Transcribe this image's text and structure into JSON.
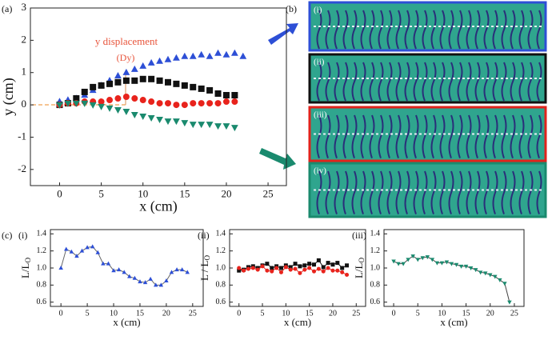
{
  "panel_labels": {
    "a": "(a)",
    "b": "(b)",
    "c": "(c)"
  },
  "images": [
    {
      "label": "(i)",
      "color": "#2d4fd6"
    },
    {
      "label": "(ii)",
      "color": "#111111"
    },
    {
      "label": "(iii)",
      "color": "#e0231c"
    },
    {
      "label": "(iv)",
      "color": "#1a8a6e"
    }
  ],
  "chart_data": [
    {
      "type": "scatter",
      "xlabel": "x (cm)",
      "ylabel": "y (cm)",
      "annotations": [
        "y displacement",
        "(Dy)"
      ],
      "xlim": [
        -3.5,
        27.2
      ],
      "ylim": [
        -2.5,
        3
      ],
      "xticks": [
        0,
        5,
        10,
        15,
        20,
        25
      ],
      "yticks": [
        -2,
        -1,
        0,
        1,
        2,
        3
      ],
      "series": [
        {
          "marker": "tri-up",
          "color": "#2d4fd6",
          "x": [
            0,
            1,
            2,
            3,
            4,
            5,
            6,
            7,
            8,
            9,
            10,
            11,
            12,
            13,
            14,
            15,
            16,
            17,
            18,
            19,
            20,
            21,
            22
          ],
          "values": [
            0.1,
            0.15,
            0.2,
            0.3,
            0.45,
            0.6,
            0.75,
            0.9,
            1.0,
            1.1,
            1.2,
            1.3,
            1.35,
            1.4,
            1.45,
            1.5,
            1.5,
            1.55,
            1.5,
            1.6,
            1.55,
            1.6,
            1.5
          ]
        },
        {
          "marker": "square",
          "color": "#111111",
          "x": [
            0,
            1,
            2,
            3,
            4,
            5,
            6,
            7,
            8,
            9,
            10,
            11,
            12,
            13,
            14,
            15,
            16,
            17,
            18,
            19,
            20,
            21
          ],
          "values": [
            0,
            0.05,
            0.2,
            0.4,
            0.55,
            0.6,
            0.65,
            0.7,
            0.75,
            0.75,
            0.8,
            0.8,
            0.75,
            0.7,
            0.65,
            0.6,
            0.55,
            0.5,
            0.45,
            0.35,
            0.3,
            0.3
          ]
        },
        {
          "marker": "circle",
          "color": "#e8231c",
          "x": [
            0,
            1,
            2,
            3,
            4,
            5,
            6,
            7,
            8,
            9,
            10,
            11,
            12,
            13,
            14,
            15,
            16,
            17,
            18,
            19,
            20,
            21
          ],
          "values": [
            0,
            0.05,
            0.05,
            0.1,
            0.1,
            0.1,
            0.15,
            0.2,
            0.25,
            0.2,
            0.15,
            0.1,
            0.05,
            0.05,
            0,
            0,
            0.05,
            0.05,
            0.05,
            0.05,
            0.1,
            0.1
          ]
        },
        {
          "marker": "tri-down",
          "color": "#1a8a6e",
          "x": [
            0,
            1,
            2,
            3,
            4,
            5,
            6,
            7,
            8,
            9,
            10,
            11,
            12,
            13,
            14,
            15,
            16,
            17,
            18,
            19,
            20,
            21
          ],
          "values": [
            0,
            0.05,
            0.05,
            0.05,
            0,
            -0.05,
            -0.1,
            -0.15,
            -0.2,
            -0.3,
            -0.35,
            -0.4,
            -0.45,
            -0.5,
            -0.5,
            -0.55,
            -0.6,
            -0.6,
            -0.6,
            -0.65,
            -0.65,
            -0.7
          ]
        }
      ]
    },
    {
      "type": "line",
      "label": "(i)",
      "xlabel": "x (cm)",
      "ylabel": "L/L",
      "ylabel_sub": "O",
      "xlim": [
        -2,
        27
      ],
      "ylim": [
        0.55,
        1.45
      ],
      "xticks": [
        0,
        5,
        10,
        15,
        20,
        25
      ],
      "yticks": [
        0.6,
        0.8,
        {
          "value": 1,
          "label": "1.0"
        },
        1.2,
        1.4
      ],
      "series": [
        {
          "marker": "tri-up",
          "color": "#2d4fd6",
          "x": [
            0,
            1,
            2,
            3,
            4,
            5,
            6,
            7,
            8,
            9,
            10,
            11,
            12,
            13,
            14,
            15,
            16,
            17,
            18,
            19,
            20,
            21,
            22,
            23,
            24
          ],
          "values": [
            1.0,
            1.22,
            1.19,
            1.14,
            1.2,
            1.24,
            1.25,
            1.18,
            1.05,
            1.05,
            0.97,
            0.98,
            0.95,
            0.9,
            0.88,
            0.84,
            0.83,
            0.87,
            0.8,
            0.8,
            0.85,
            0.95,
            0.98,
            0.98,
            0.95
          ]
        }
      ]
    },
    {
      "type": "line",
      "label": "(ii)",
      "xlabel": "x (cm)",
      "ylabel": "L / L",
      "ylabel_sub": "O",
      "xlim": [
        -2,
        27
      ],
      "ylim": [
        0.55,
        1.45
      ],
      "xticks": [
        0,
        5,
        10,
        15,
        20,
        25
      ],
      "yticks": [
        0.6,
        0.8,
        {
          "value": 1,
          "label": "1.0"
        },
        1.2,
        1.4
      ],
      "series": [
        {
          "marker": "square",
          "color": "#111111",
          "x": [
            0,
            1,
            2,
            3,
            4,
            5,
            6,
            7,
            8,
            9,
            10,
            11,
            12,
            13,
            14,
            15,
            16,
            17,
            18,
            19,
            20,
            21,
            22,
            23
          ],
          "values": [
            0.97,
            0.98,
            1.01,
            1.02,
            1.0,
            1.03,
            1.05,
            1.0,
            1.02,
            1.0,
            1.03,
            1.01,
            1.05,
            1.02,
            1.03,
            1.05,
            1.04,
            1.09,
            1.01,
            1.06,
            1.04,
            1.06,
            1.0,
            1.03
          ]
        },
        {
          "marker": "circle",
          "color": "#e8231c",
          "x": [
            0,
            1,
            2,
            3,
            4,
            5,
            6,
            7,
            8,
            9,
            10,
            11,
            12,
            13,
            14,
            15,
            16,
            17,
            18,
            19,
            20,
            21,
            22,
            23
          ],
          "values": [
            1.0,
            0.97,
            0.99,
            1.0,
            0.98,
            1.02,
            0.97,
            0.96,
            1.0,
            0.95,
            1.01,
            0.98,
            0.99,
            0.94,
            0.98,
            1.0,
            0.96,
            0.99,
            0.96,
            1.0,
            0.97,
            0.97,
            0.95,
            0.92
          ]
        }
      ]
    },
    {
      "type": "line",
      "label": "(iii)",
      "xlabel": "x (cm)",
      "ylabel": "L/L",
      "ylabel_sub": "O",
      "xlim": [
        -2,
        27
      ],
      "ylim": [
        0.55,
        1.45
      ],
      "xticks": [
        0,
        5,
        10,
        15,
        20,
        25
      ],
      "yticks": [
        0.6,
        0.8,
        {
          "value": 1,
          "label": "1.0"
        },
        1.2,
        1.4
      ],
      "series": [
        {
          "marker": "tri-down",
          "color": "#1a8a6e",
          "x": [
            0,
            1,
            2,
            3,
            4,
            5,
            6,
            7,
            8,
            9,
            10,
            11,
            12,
            13,
            14,
            15,
            16,
            17,
            18,
            19,
            20,
            21,
            22,
            23,
            24
          ],
          "values": [
            1.08,
            1.05,
            1.05,
            1.1,
            1.14,
            1.1,
            1.12,
            1.13,
            1.1,
            1.06,
            1.06,
            1.07,
            1.05,
            1.04,
            1.02,
            1.02,
            1.0,
            0.98,
            0.95,
            0.94,
            0.92,
            0.9,
            0.86,
            0.82,
            0.6
          ]
        }
      ]
    }
  ]
}
